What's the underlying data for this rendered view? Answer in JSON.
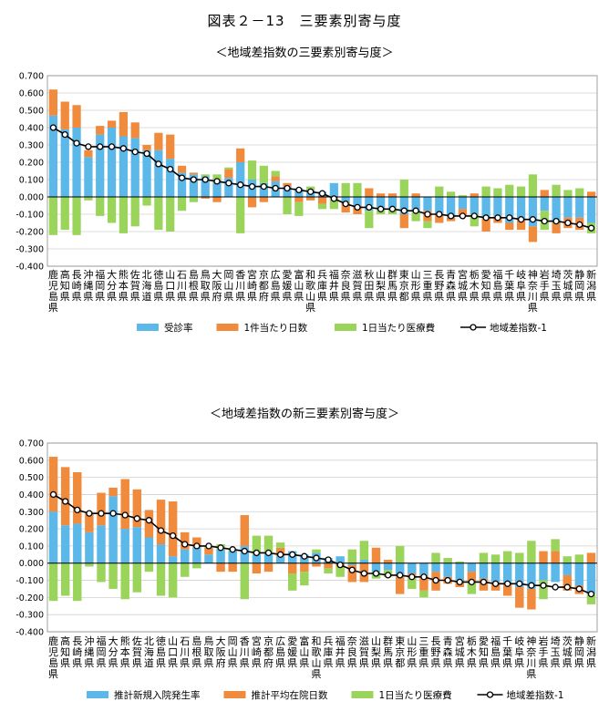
{
  "figure_title": "図表２－13　三要素別寄与度",
  "chart_data": [
    {
      "type": "bar",
      "title": "＜地域差指数の三要素別寄与度＞",
      "stacked": true,
      "categories": [
        "鹿児島県",
        "高知県",
        "長崎県",
        "沖縄県",
        "福岡県",
        "大分県",
        "熊本県",
        "佐賀県",
        "北海道",
        "徳島県",
        "山口県",
        "石川県",
        "島根県",
        "鳥取県",
        "大阪府",
        "岡山県",
        "香川県",
        "宮崎県",
        "京都府",
        "広島県",
        "愛媛県",
        "富山県",
        "和歌山県",
        "兵庫県",
        "福井県",
        "奈良県",
        "滋賀県",
        "秋田県",
        "山梨県",
        "群馬県",
        "東京都",
        "山形県",
        "三重県",
        "長野県",
        "青森県",
        "宮城県",
        "栃木県",
        "愛知県",
        "福島県",
        "千葉県",
        "岐阜県",
        "神奈川県",
        "岩手県",
        "埼玉県",
        "茨城県",
        "静岡県",
        "新潟県"
      ],
      "ylim": [
        -0.4,
        0.7
      ],
      "ytick_labels": [
        "0.700",
        "0.600",
        "0.500",
        "0.400",
        "0.300",
        "0.200",
        "0.100",
        "0.000",
        "-0.100",
        "-0.200",
        "-0.300",
        "-0.400"
      ],
      "grid": true,
      "legend_position": "bottom",
      "series": [
        {
          "name": "受診率",
          "kind": "bar",
          "color": "#5bb8e8",
          "values": [
            0.47,
            0.39,
            0.4,
            0.23,
            0.36,
            0.4,
            0.35,
            0.34,
            0.27,
            0.27,
            0.22,
            0.14,
            0.13,
            0.12,
            0.1,
            0.11,
            0.2,
            0.1,
            0.08,
            0.09,
            0.06,
            0.05,
            0.04,
            0.03,
            0.08,
            -0.03,
            -0.05,
            -0.08,
            -0.07,
            -0.06,
            -0.1,
            -0.08,
            -0.08,
            -0.1,
            -0.12,
            -0.07,
            -0.1,
            -0.12,
            -0.11,
            -0.15,
            -0.13,
            -0.17,
            -0.08,
            -0.15,
            -0.12,
            -0.12,
            -0.15
          ]
        },
        {
          "name": "1件当たり日数",
          "kind": "bar",
          "color": "#f08a3c",
          "values": [
            0.15,
            0.16,
            0.13,
            0.04,
            0.05,
            0.04,
            0.14,
            0.09,
            0.03,
            0.1,
            0.14,
            0.04,
            0.01,
            -0.01,
            -0.03,
            0.05,
            0.08,
            -0.06,
            -0.03,
            0.03,
            0.02,
            -0.03,
            -0.02,
            -0.04,
            -0.01,
            -0.06,
            -0.05,
            0.05,
            0.02,
            0.02,
            -0.08,
            0.02,
            -0.06,
            -0.05,
            -0.02,
            -0.04,
            0.02,
            -0.08,
            -0.04,
            -0.04,
            -0.06,
            -0.09,
            0.04,
            -0.06,
            -0.06,
            -0.07,
            0.03
          ]
        },
        {
          "name": "1日当たり医療費",
          "kind": "bar",
          "color": "#9bd45a",
          "values": [
            -0.22,
            -0.19,
            -0.22,
            -0.02,
            -0.11,
            -0.15,
            -0.21,
            -0.17,
            -0.05,
            -0.19,
            -0.2,
            -0.08,
            -0.03,
            0.01,
            0.03,
            0.01,
            -0.21,
            0.11,
            0.1,
            0.03,
            -0.1,
            -0.08,
            0.02,
            -0.03,
            -0.06,
            0.08,
            0.08,
            -0.1,
            -0.03,
            -0.04,
            0.1,
            -0.06,
            -0.04,
            0.06,
            0.03,
            0.01,
            -0.07,
            0.06,
            0.05,
            0.07,
            0.06,
            0.13,
            -0.11,
            0.07,
            0.04,
            0.05,
            -0.06
          ]
        },
        {
          "name": "地域差指数-1",
          "kind": "line",
          "color": "#000000",
          "values": [
            0.4,
            0.36,
            0.31,
            0.29,
            0.29,
            0.29,
            0.28,
            0.26,
            0.25,
            0.19,
            0.16,
            0.11,
            0.1,
            0.1,
            0.09,
            0.08,
            0.07,
            0.06,
            0.06,
            0.05,
            0.05,
            0.04,
            0.03,
            0.02,
            -0.01,
            -0.04,
            -0.06,
            -0.06,
            -0.07,
            -0.07,
            -0.08,
            -0.08,
            -0.1,
            -0.1,
            -0.11,
            -0.11,
            -0.11,
            -0.12,
            -0.12,
            -0.12,
            -0.13,
            -0.13,
            -0.14,
            -0.14,
            -0.15,
            -0.16,
            -0.18
          ]
        }
      ]
    },
    {
      "type": "bar",
      "title": "＜地域差指数の新三要素別寄与度＞",
      "stacked": true,
      "categories": [
        "鹿児島県",
        "高知県",
        "長崎県",
        "沖縄県",
        "福岡県",
        "大分県",
        "熊本県",
        "佐賀県",
        "北海道",
        "徳島県",
        "山口県",
        "石川県",
        "島根県",
        "鳥取県",
        "大阪府",
        "岡山県",
        "香川県",
        "宮崎県",
        "京都府",
        "広島県",
        "愛媛県",
        "富山県",
        "和歌山県",
        "兵庫県",
        "福井県",
        "奈良県",
        "滋賀県",
        "山梨県",
        "群馬県",
        "東京都",
        "山形県",
        "三重県",
        "長野県",
        "青森県",
        "宮城県",
        "栃木県",
        "愛知県",
        "福島県",
        "千葉県",
        "岐阜県",
        "神奈川県",
        "岩手県",
        "埼玉県",
        "茨城県",
        "静岡県",
        "新潟県"
      ],
      "ylim": [
        -0.4,
        0.7
      ],
      "ytick_labels": [
        "0.700",
        "0.600",
        "0.500",
        "0.400",
        "0.300",
        "0.200",
        "0.100",
        "0.000",
        "-0.100",
        "-0.200",
        "-0.300",
        "-0.400"
      ],
      "grid": true,
      "legend_position": "bottom",
      "series": [
        {
          "name": "推計新規入院発生率",
          "kind": "bar",
          "color": "#5bb8e8",
          "values": [
            0.3,
            0.22,
            0.23,
            0.18,
            0.22,
            0.39,
            0.2,
            0.21,
            0.15,
            0.11,
            0.04,
            0.08,
            0.09,
            0.05,
            0.08,
            0.07,
            0.1,
            0.05,
            0.06,
            0.04,
            0.07,
            0.05,
            0.06,
            0.03,
            0.04,
            -0.01,
            0.02,
            -0.06,
            -0.04,
            -0.08,
            -0.06,
            -0.07,
            -0.05,
            -0.08,
            -0.1,
            -0.05,
            -0.09,
            -0.11,
            -0.12,
            -0.14,
            -0.15,
            -0.1,
            -0.11,
            -0.07,
            -0.13,
            -0.18
          ]
        },
        {
          "name": "推計平均在院日数",
          "kind": "bar",
          "color": "#f08a3c",
          "values": [
            0.32,
            0.34,
            0.3,
            0.11,
            0.19,
            0.05,
            0.29,
            0.22,
            0.16,
            0.26,
            0.32,
            0.1,
            0.06,
            0.04,
            -0.05,
            -0.05,
            0.18,
            -0.06,
            -0.05,
            0.05,
            -0.06,
            -0.05,
            -0.02,
            -0.03,
            -0.02,
            -0.1,
            -0.11,
            0.09,
            0.02,
            -0.1,
            -0.03,
            -0.09,
            -0.11,
            -0.04,
            -0.04,
            -0.06,
            -0.07,
            -0.05,
            -0.07,
            -0.12,
            -0.12,
            0.07,
            0.07,
            -0.09,
            -0.05,
            0.06
          ]
        },
        {
          "name": "1日当たり医療費",
          "kind": "bar",
          "color": "#9bd45a",
          "values": [
            -0.22,
            -0.19,
            -0.22,
            -0.02,
            -0.11,
            -0.15,
            -0.21,
            -0.17,
            -0.05,
            -0.19,
            -0.2,
            -0.08,
            -0.03,
            0.01,
            0.03,
            0.01,
            -0.21,
            0.11,
            0.1,
            0.03,
            -0.1,
            -0.08,
            0.02,
            -0.03,
            -0.06,
            0.08,
            0.11,
            -0.03,
            -0.04,
            0.1,
            -0.06,
            -0.04,
            0.06,
            0.03,
            0.01,
            -0.07,
            0.06,
            0.05,
            0.07,
            0.06,
            0.13,
            -0.11,
            0.07,
            0.04,
            0.05,
            -0.06
          ]
        },
        {
          "name": "地域差指数-1",
          "kind": "line",
          "color": "#000000",
          "values": [
            0.4,
            0.36,
            0.31,
            0.29,
            0.29,
            0.29,
            0.28,
            0.26,
            0.25,
            0.19,
            0.16,
            0.11,
            0.1,
            0.1,
            0.09,
            0.08,
            0.07,
            0.06,
            0.06,
            0.05,
            0.05,
            0.04,
            0.03,
            0.02,
            -0.01,
            -0.04,
            -0.06,
            -0.06,
            -0.07,
            -0.07,
            -0.08,
            -0.08,
            -0.1,
            -0.1,
            -0.11,
            -0.11,
            -0.11,
            -0.12,
            -0.12,
            -0.12,
            -0.13,
            -0.13,
            -0.14,
            -0.14,
            -0.15,
            -0.18
          ]
        }
      ]
    }
  ]
}
